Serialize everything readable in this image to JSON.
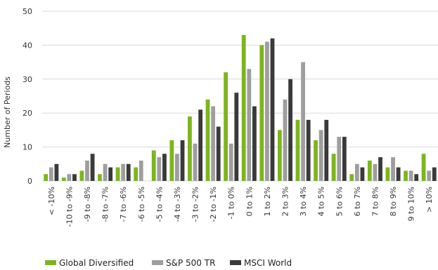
{
  "chart_data": {
    "type": "bar",
    "title": "",
    "xlabel": "",
    "ylabel": "Number of Periods",
    "ylim": [
      0,
      50
    ],
    "yticks": [
      0,
      10,
      20,
      30,
      40,
      50
    ],
    "grid": true,
    "legend_position": "bottom",
    "categories": [
      "< -10%",
      "-10 to -9%",
      "-9 to -8%",
      "-8 to -7%",
      "-7 to -6%",
      "-6 to -5%",
      "-5 to -4%",
      "-4 to -3%",
      "-3 to -2%",
      "-2 to -1%",
      "-1 to 0%",
      "0 to 1%",
      "1 to 2%",
      "2 to 3%",
      "3 to 4%",
      "4 to 5%",
      "5 to 6%",
      "6 to 7%",
      "7 to 8%",
      "8 to 9%",
      "9 to 10%",
      "> 10%"
    ],
    "series": [
      {
        "name": "Global Diversified",
        "color": "#7db51e",
        "values": [
          2,
          1,
          3,
          2,
          4,
          4,
          9,
          12,
          19,
          24,
          32,
          43,
          40,
          15,
          18,
          12,
          8,
          2,
          6,
          4,
          3,
          8
        ]
      },
      {
        "name": "S&P 500 TR",
        "color": "#9e9e9e",
        "values": [
          4,
          2,
          6,
          5,
          5,
          6,
          7,
          8,
          11,
          22,
          11,
          33,
          41,
          24,
          35,
          15,
          13,
          5,
          5,
          7,
          3,
          3
        ]
      },
      {
        "name": "MSCI World",
        "color": "#3a3a3a",
        "values": [
          5,
          2,
          8,
          4,
          5,
          0,
          8,
          12,
          21,
          16,
          26,
          22,
          42,
          30,
          18,
          18,
          13,
          4,
          7,
          4,
          2,
          4
        ]
      }
    ]
  }
}
